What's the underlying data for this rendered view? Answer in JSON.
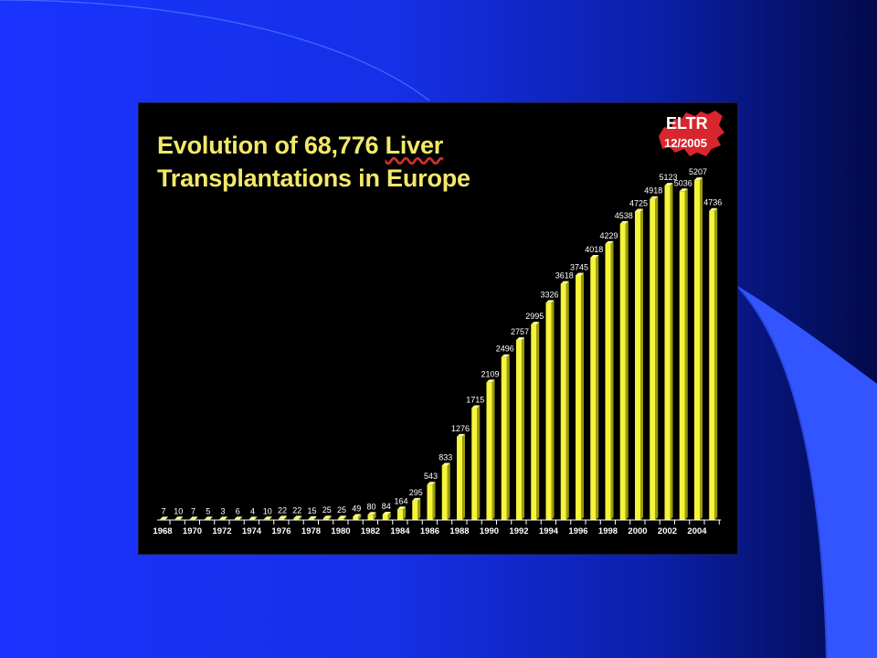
{
  "slide": {
    "title_line1_prefix": "Evolution of 68,776 ",
    "title_line1_word": "Liver",
    "title_line2": "Transplantations in Europe",
    "badge_line1": "ELTR",
    "badge_line2": "12/2005",
    "colors": {
      "background_left": "#1a33ff",
      "background_right": "#020a4a",
      "bar_fill": "#f5f53a",
      "bar_shade": "#9a9a10",
      "title": "#f2e96a",
      "badge": "#d8262e"
    }
  },
  "chart_data": {
    "type": "bar",
    "title": "Evolution of 68,776 Liver Transplantations in Europe",
    "x": [
      1968,
      1969,
      1970,
      1971,
      1972,
      1973,
      1974,
      1975,
      1976,
      1977,
      1978,
      1979,
      1980,
      1981,
      1982,
      1983,
      1984,
      1985,
      1986,
      1987,
      1988,
      1989,
      1990,
      1991,
      1992,
      1993,
      1994,
      1995,
      1996,
      1997,
      1998,
      1999,
      2000,
      2001,
      2002,
      2003,
      2004,
      2005
    ],
    "values": [
      7,
      10,
      7,
      5,
      3,
      6,
      4,
      10,
      22,
      22,
      15,
      25,
      25,
      49,
      80,
      84,
      164,
      295,
      543,
      833,
      1276,
      1715,
      2109,
      2496,
      2757,
      2995,
      3326,
      3618,
      3745,
      4018,
      4229,
      4538,
      4725,
      4918,
      5123,
      5036,
      5207,
      4736
    ],
    "x_tick_labels": [
      "1968",
      "1970",
      "1972",
      "1974",
      "1976",
      "1978",
      "1980",
      "1982",
      "1984",
      "1986",
      "1988",
      "1990",
      "1992",
      "1994",
      "1996",
      "1998",
      "2000",
      "2002",
      "2004"
    ],
    "data_labels": true,
    "xlabel": "",
    "ylabel": "",
    "ylim": [
      0,
      5600
    ],
    "grid": false,
    "legend": "none"
  }
}
